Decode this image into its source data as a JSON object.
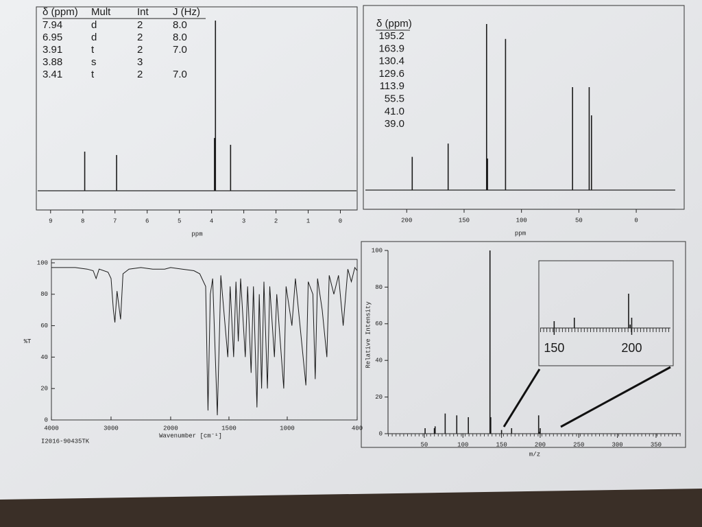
{
  "chart_data": [
    {
      "type": "stem",
      "table": {
        "columns": [
          "δ (ppm)",
          "Mult",
          "Int",
          "J (Hz)"
        ],
        "rows": [
          [
            "7.94",
            "d",
            "2",
            "8.0"
          ],
          [
            "6.95",
            "d",
            "2",
            "8.0"
          ],
          [
            "3.91",
            "t",
            "2",
            "7.0"
          ],
          [
            "3.88",
            "s",
            "3",
            null
          ],
          [
            "3.41",
            "t",
            "2",
            "7.0"
          ]
        ]
      },
      "x": [
        7.94,
        6.95,
        3.91,
        3.88,
        3.41
      ],
      "values": [
        23,
        21,
        31,
        100,
        27
      ],
      "xlim": [
        9.4,
        -0.5
      ],
      "ylim": [
        0,
        100
      ],
      "xticks": [
        9,
        8,
        7,
        6,
        5,
        4,
        3,
        2,
        1,
        0
      ],
      "xlabel": "ppm",
      "color": "#1a1a1a"
    },
    {
      "type": "stem",
      "table": {
        "columns": [
          "δ (ppm)"
        ],
        "rows": [
          [
            "195.2"
          ],
          [
            "163.9"
          ],
          [
            "130.4"
          ],
          [
            "129.6"
          ],
          [
            "113.9"
          ],
          [
            "55.5"
          ],
          [
            "41.0"
          ],
          [
            "39.0"
          ]
        ]
      },
      "x": [
        195.2,
        163.9,
        130.4,
        129.6,
        113.9,
        55.5,
        41.0,
        39.0
      ],
      "values": [
        20,
        28,
        100,
        19,
        91,
        62,
        62,
        45
      ],
      "xlim": [
        236,
        -34
      ],
      "ylim": [
        0,
        100
      ],
      "xticks": [
        200,
        150,
        100,
        50,
        0
      ],
      "xlabel": "ppm",
      "color": "#1a1a1a"
    },
    {
      "type": "line",
      "x": [
        4000,
        3800,
        3600,
        3400,
        3300,
        3250,
        3200,
        3050,
        3000,
        2960,
        2935,
        2900,
        2840,
        2800,
        2700,
        2500,
        2300,
        2100,
        2000,
        1900,
        1800,
        1750,
        1700,
        1680,
        1660,
        1640,
        1600,
        1580,
        1570,
        1510,
        1490,
        1460,
        1440,
        1420,
        1400,
        1360,
        1340,
        1310,
        1290,
        1260,
        1240,
        1220,
        1200,
        1170,
        1150,
        1110,
        1090,
        1030,
        1010,
        960,
        930,
        840,
        820,
        780,
        760,
        740,
        700,
        660,
        640,
        600,
        560,
        520,
        480,
        450,
        420,
        400
      ],
      "values": [
        97,
        97,
        97,
        96,
        95,
        90,
        96,
        94,
        90,
        70,
        62,
        82,
        64,
        93,
        96,
        97,
        96,
        96,
        97,
        96,
        95,
        93,
        85,
        6,
        80,
        90,
        3,
        60,
        92,
        40,
        85,
        40,
        88,
        50,
        90,
        40,
        85,
        30,
        85,
        8,
        80,
        20,
        88,
        20,
        85,
        40,
        80,
        20,
        85,
        60,
        90,
        22,
        88,
        80,
        26,
        90,
        70,
        40,
        92,
        80,
        92,
        60,
        96,
        88,
        97,
        95
      ],
      "xlim": [
        4000,
        400
      ],
      "x_break": 2000,
      "ylim": [
        0,
        100
      ],
      "xticks": [
        4000,
        3000,
        2000,
        1500,
        1000,
        400
      ],
      "yticks": [
        0,
        20,
        40,
        60,
        80,
        100
      ],
      "xlabel": "Wavenumber [cm⁻¹]",
      "ylabel": "%T",
      "note": "I2016-90435TK",
      "color": "#1a1a1a"
    },
    {
      "type": "bar",
      "x": [
        51,
        63,
        64,
        77,
        92,
        107,
        135,
        136,
        150,
        163,
        198,
        199,
        200
      ],
      "values": [
        3,
        3,
        4,
        11,
        10,
        9,
        100,
        9,
        2,
        3,
        10,
        1,
        3
      ],
      "xlim": [
        3,
        382
      ],
      "ylim": [
        0,
        100
      ],
      "xticks": [
        50,
        100,
        150,
        200,
        250,
        300,
        350
      ],
      "yticks": [
        0,
        20,
        40,
        60,
        80,
        100
      ],
      "xlabel": "m/z",
      "ylabel": "Relative Intensity",
      "color": "#1a1a1a",
      "inset": {
        "xlim": [
          141,
          225
        ],
        "ylim": [
          0,
          18
        ],
        "xticks": [
          150,
          200
        ]
      }
    }
  ]
}
